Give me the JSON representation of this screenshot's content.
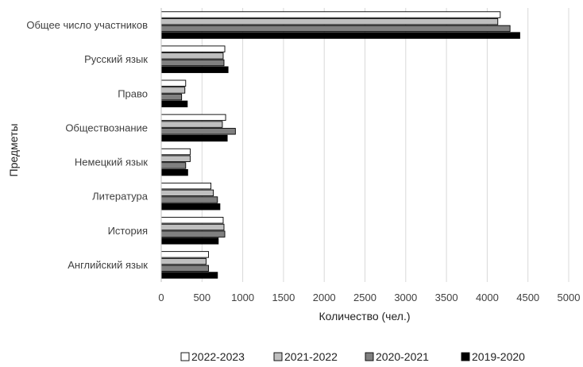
{
  "chart_data": {
    "type": "bar",
    "orientation": "horizontal",
    "categories": [
      "Общее число участников",
      "Русский язык",
      "Право",
      "Обществознание",
      "Немецкий язык",
      "Литература",
      "История",
      "Английский язык"
    ],
    "series": [
      {
        "name": "2022-2023",
        "color": "#ffffff",
        "values": [
          4160,
          780,
          300,
          790,
          355,
          610,
          760,
          580
        ]
      },
      {
        "name": "2021-2022",
        "color": "#bfbfbf",
        "values": [
          4130,
          760,
          290,
          750,
          355,
          640,
          770,
          550
        ]
      },
      {
        "name": "2020-2021",
        "color": "#808080",
        "values": [
          4280,
          770,
          250,
          910,
          300,
          690,
          780,
          580
        ]
      },
      {
        "name": "2019-2020",
        "color": "#000000",
        "values": [
          4400,
          820,
          320,
          810,
          325,
          720,
          700,
          690
        ]
      }
    ],
    "xlabel": "Количество (чел.)",
    "ylabel": "Предметы",
    "xlim": [
      0,
      5000
    ],
    "xticks": [
      0,
      500,
      1000,
      1500,
      2000,
      2500,
      3000,
      3500,
      4000,
      4500,
      5000
    ],
    "grid": "vertical",
    "legend": "bottom"
  }
}
